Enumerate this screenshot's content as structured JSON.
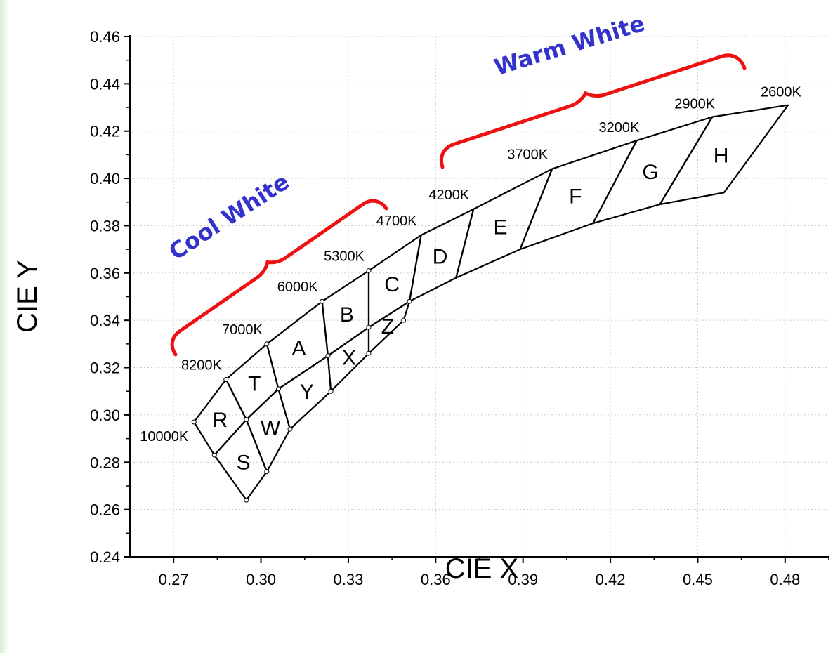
{
  "chart_data": {
    "type": "scatter",
    "title": "",
    "xlabel": "CIE X",
    "ylabel": "CIE Y",
    "xlim": [
      0.255,
      0.495
    ],
    "ylim": [
      0.24,
      0.46
    ],
    "xticks": [
      "0.27",
      "0.30",
      "0.33",
      "0.36",
      "0.39",
      "0.42",
      "0.45",
      "0.48"
    ],
    "yticks": [
      "0.24",
      "0.26",
      "0.28",
      "0.30",
      "0.32",
      "0.34",
      "0.36",
      "0.38",
      "0.40",
      "0.42",
      "0.44",
      "0.46"
    ],
    "grid": true,
    "cct_points": [
      {
        "label": "10000K",
        "x": 0.277,
        "y": 0.297
      },
      {
        "label": "8200K",
        "x": 0.288,
        "y": 0.315
      },
      {
        "label": "7000K",
        "x": 0.302,
        "y": 0.33
      },
      {
        "label": "6000K",
        "x": 0.321,
        "y": 0.348
      },
      {
        "label": "5300K",
        "x": 0.337,
        "y": 0.361
      },
      {
        "label": "4700K",
        "x": 0.355,
        "y": 0.376
      },
      {
        "label": "4200K",
        "x": 0.373,
        "y": 0.387
      },
      {
        "label": "3700K",
        "x": 0.4,
        "y": 0.404
      },
      {
        "label": "3200K",
        "x": 0.429,
        "y": 0.416
      },
      {
        "label": "2900K",
        "x": 0.455,
        "y": 0.426
      },
      {
        "label": "2600K",
        "x": 0.481,
        "y": 0.431
      }
    ],
    "bins": [
      {
        "label": "R",
        "polygon": [
          [
            0.277,
            0.297
          ],
          [
            0.288,
            0.315
          ],
          [
            0.295,
            0.298
          ],
          [
            0.284,
            0.283
          ]
        ]
      },
      {
        "label": "S",
        "polygon": [
          [
            0.284,
            0.283
          ],
          [
            0.295,
            0.298
          ],
          [
            0.302,
            0.276
          ],
          [
            0.295,
            0.264
          ]
        ]
      },
      {
        "label": "T",
        "polygon": [
          [
            0.288,
            0.315
          ],
          [
            0.302,
            0.33
          ],
          [
            0.306,
            0.311
          ],
          [
            0.295,
            0.298
          ]
        ]
      },
      {
        "label": "W",
        "polygon": [
          [
            0.295,
            0.298
          ],
          [
            0.306,
            0.311
          ],
          [
            0.31,
            0.294
          ],
          [
            0.302,
            0.276
          ]
        ]
      },
      {
        "label": "A",
        "polygon": [
          [
            0.302,
            0.33
          ],
          [
            0.321,
            0.348
          ],
          [
            0.323,
            0.325
          ],
          [
            0.306,
            0.311
          ]
        ]
      },
      {
        "label": "Y",
        "polygon": [
          [
            0.306,
            0.311
          ],
          [
            0.323,
            0.325
          ],
          [
            0.324,
            0.31
          ],
          [
            0.31,
            0.294
          ]
        ]
      },
      {
        "label": "B",
        "polygon": [
          [
            0.321,
            0.348
          ],
          [
            0.337,
            0.361
          ],
          [
            0.337,
            0.337
          ],
          [
            0.323,
            0.325
          ]
        ]
      },
      {
        "label": "X",
        "polygon": [
          [
            0.323,
            0.325
          ],
          [
            0.337,
            0.337
          ],
          [
            0.337,
            0.326
          ],
          [
            0.324,
            0.31
          ]
        ]
      },
      {
        "label": "C",
        "polygon": [
          [
            0.337,
            0.361
          ],
          [
            0.355,
            0.376
          ],
          [
            0.351,
            0.348
          ],
          [
            0.337,
            0.337
          ]
        ]
      },
      {
        "label": "Z",
        "polygon": [
          [
            0.337,
            0.337
          ],
          [
            0.351,
            0.348
          ],
          [
            0.349,
            0.34
          ],
          [
            0.337,
            0.326
          ]
        ]
      },
      {
        "label": "D",
        "polygon": [
          [
            0.355,
            0.376
          ],
          [
            0.373,
            0.387
          ],
          [
            0.367,
            0.358
          ],
          [
            0.351,
            0.348
          ]
        ]
      },
      {
        "label": "E",
        "polygon": [
          [
            0.373,
            0.387
          ],
          [
            0.4,
            0.404
          ],
          [
            0.389,
            0.37
          ],
          [
            0.367,
            0.358
          ]
        ]
      },
      {
        "label": "F",
        "polygon": [
          [
            0.4,
            0.404
          ],
          [
            0.429,
            0.416
          ],
          [
            0.414,
            0.381
          ],
          [
            0.389,
            0.37
          ]
        ]
      },
      {
        "label": "G",
        "polygon": [
          [
            0.429,
            0.416
          ],
          [
            0.455,
            0.426
          ],
          [
            0.437,
            0.389
          ],
          [
            0.414,
            0.381
          ]
        ]
      },
      {
        "label": "H",
        "polygon": [
          [
            0.455,
            0.426
          ],
          [
            0.481,
            0.431
          ],
          [
            0.459,
            0.394
          ],
          [
            0.437,
            0.389
          ]
        ]
      }
    ],
    "annotations": [
      {
        "text": "Cool White",
        "color": "#3333cc"
      },
      {
        "text": "Warm White",
        "color": "#3333cc"
      }
    ],
    "bracket_color": "#ee1111"
  }
}
